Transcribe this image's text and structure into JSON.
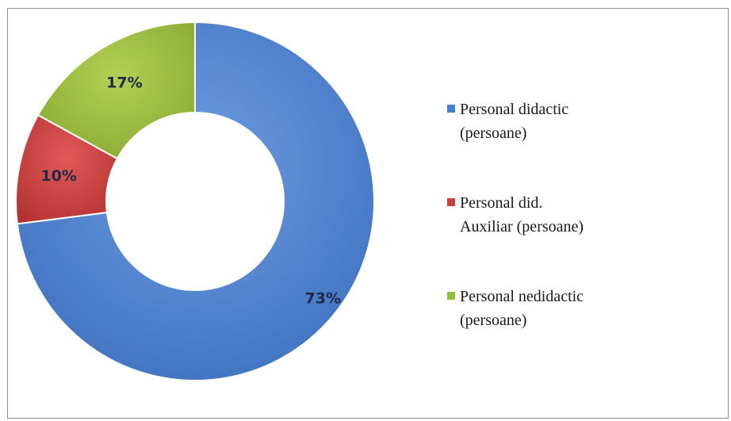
{
  "chart_data": {
    "type": "pie",
    "variant": "donut",
    "title": "",
    "categories": [
      "Personal didactic (persoane)",
      "Personal did. Auxiliar (persoane)",
      "Personal nedidactic (persoane)"
    ],
    "values": [
      73,
      10,
      17
    ],
    "data_labels": [
      "73%",
      "10%",
      "17%"
    ],
    "colors": [
      "#4a7fcf",
      "#c8403f",
      "#9bbb3c"
    ],
    "legend": {
      "placement": "right",
      "entries": [
        {
          "lines": [
            "Personal didactic",
            "(persoane)"
          ]
        },
        {
          "lines": [
            "Personal did.",
            "Auxiliar (persoane)"
          ]
        },
        {
          "lines": [
            "Personal nedidactic",
            "(persoane)"
          ]
        }
      ]
    }
  }
}
